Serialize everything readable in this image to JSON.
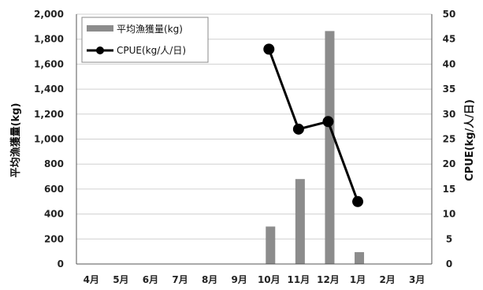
{
  "chart_data": {
    "type": "bar+line",
    "categories": [
      "4月",
      "5月",
      "6月",
      "7月",
      "8月",
      "9月",
      "10月",
      "11月",
      "12月",
      "1月",
      "2月",
      "3月"
    ],
    "series": [
      {
        "name": "平均漁獲量(kg)",
        "type": "bar",
        "axis": "left",
        "color": "#8c8c8c",
        "values": [
          null,
          null,
          null,
          null,
          null,
          null,
          300,
          680,
          1865,
          95,
          null,
          null
        ]
      },
      {
        "name": "CPUE(kg/人/日)",
        "type": "line",
        "axis": "right",
        "color": "#000000",
        "values": [
          null,
          null,
          null,
          null,
          null,
          null,
          43,
          27,
          28.5,
          12.5,
          null,
          null
        ]
      }
    ],
    "ylabel": "平均漁獲量(kg)",
    "y2label": "CPUE(kg/人/日)",
    "ylim": [
      0,
      2000
    ],
    "y2lim": [
      0,
      50
    ],
    "yticks": [
      "0",
      "200",
      "400",
      "600",
      "800",
      "1,000",
      "1,200",
      "1,400",
      "1,600",
      "1,800",
      "2,000"
    ],
    "y2ticks": [
      "0",
      "5",
      "10",
      "15",
      "20",
      "25",
      "30",
      "35",
      "40",
      "45",
      "50"
    ],
    "grid": true,
    "legend": "top-left"
  }
}
